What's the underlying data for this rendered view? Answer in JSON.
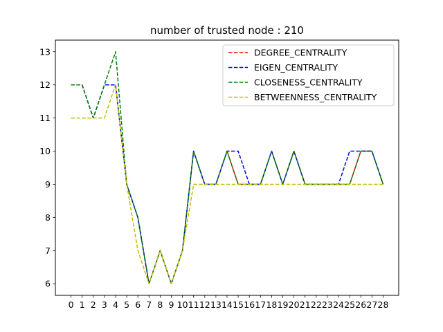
{
  "chart_data": {
    "type": "line",
    "title": "number of trusted node : 210",
    "xlabel": "",
    "ylabel": "",
    "x": [
      0,
      1,
      2,
      3,
      4,
      5,
      6,
      7,
      8,
      9,
      10,
      11,
      12,
      13,
      14,
      15,
      16,
      17,
      18,
      19,
      20,
      21,
      22,
      23,
      24,
      25,
      26,
      27,
      28
    ],
    "xlim": [
      -1.4,
      29.4
    ],
    "ylim": [
      5.65,
      13.35
    ],
    "yticks": [
      6,
      7,
      8,
      9,
      10,
      11,
      12,
      13
    ],
    "grid": false,
    "legend_position": "top-right",
    "series": [
      {
        "name": "DEGREE_CENTRALITY",
        "color": "#ff0000",
        "style": "dashed",
        "values": [
          12,
          12,
          11,
          12,
          12,
          9,
          8,
          6,
          7,
          6,
          7,
          10,
          9,
          9,
          10,
          9,
          9,
          9,
          10,
          9,
          10,
          9,
          9,
          9,
          9,
          9,
          10,
          10,
          9
        ]
      },
      {
        "name": "EIGEN_CENTRALITY",
        "color": "#0000ff",
        "style": "dashed",
        "values": [
          12,
          12,
          11,
          12,
          12,
          9,
          8,
          6,
          7,
          6,
          7,
          10,
          9,
          9,
          10,
          10,
          9,
          9,
          10,
          9,
          10,
          9,
          9,
          9,
          9,
          10,
          10,
          10,
          9
        ]
      },
      {
        "name": "CLOSENESS_CENTRALITY",
        "color": "#008000",
        "style": "dashed",
        "values": [
          12,
          12,
          11,
          12,
          13,
          9,
          8,
          6,
          7,
          6,
          7,
          10,
          9,
          9,
          10,
          9,
          9,
          9,
          10,
          9,
          10,
          9,
          9,
          9,
          9,
          9,
          10,
          10,
          9
        ]
      },
      {
        "name": "BETWEENNESS_CENTRALITY",
        "color": "#bfbf00",
        "style": "dashed",
        "values": [
          11,
          11,
          11,
          11,
          12,
          9,
          7,
          6,
          7,
          6,
          7,
          9,
          9,
          9,
          9,
          9,
          9,
          9,
          9,
          9,
          9,
          9,
          9,
          9,
          9,
          9,
          9,
          9,
          9
        ]
      }
    ]
  }
}
